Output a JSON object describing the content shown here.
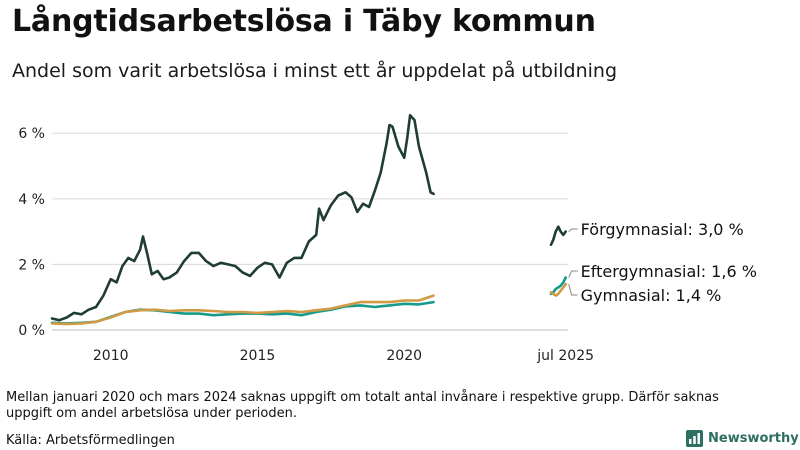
{
  "header": {
    "title": "Långtidsarbetslösa i Täby kommun",
    "subtitle": "Andel som varit arbetslösa i minst ett år uppdelat på utbildning"
  },
  "footer": {
    "footnote": "Mellan januari 2020 och mars 2024 saknas uppgift om totalt antal invånare i respektive grupp. Därför saknas uppgift om andel arbetslösa under perioden.",
    "source": "Källa: Arbetsförmedlingen",
    "brand": "Newsworthy",
    "brand_icon": "bar-chart-logo-icon"
  },
  "chart_data": {
    "type": "line",
    "title": "Långtidsarbetslösa i Täby kommun",
    "subtitle": "Andel som varit arbetslösa i minst ett år uppdelat på utbildning",
    "xlabel": "",
    "ylabel": "",
    "x_range": [
      2008.0,
      2025.58
    ],
    "ylim": [
      0,
      6.8
    ],
    "y_ticks": [
      0,
      2,
      4,
      6
    ],
    "y_tick_labels": [
      "0 %",
      "2 %",
      "4 %",
      "6 %"
    ],
    "x_ticks": [
      2010,
      2015,
      2020,
      2025.5
    ],
    "x_tick_labels": [
      "2010",
      "2015",
      "2020",
      "jul 2025"
    ],
    "grid": "horizontal",
    "legend": "direct labels at line ends (right)",
    "series": [
      {
        "name": "Förgymnasial",
        "end_label": "Förgymnasial: 3,0 %",
        "color": "#1f3d33",
        "segments": [
          [
            [
              2008.0,
              0.35
            ],
            [
              2008.25,
              0.3
            ],
            [
              2008.5,
              0.38
            ],
            [
              2008.75,
              0.52
            ],
            [
              2009.0,
              0.48
            ],
            [
              2009.25,
              0.62
            ],
            [
              2009.5,
              0.7
            ],
            [
              2009.75,
              1.05
            ],
            [
              2010.0,
              1.55
            ],
            [
              2010.2,
              1.45
            ],
            [
              2010.4,
              1.95
            ],
            [
              2010.6,
              2.2
            ],
            [
              2010.8,
              2.1
            ],
            [
              2011.0,
              2.45
            ],
            [
              2011.1,
              2.85
            ],
            [
              2011.25,
              2.3
            ],
            [
              2011.4,
              1.7
            ],
            [
              2011.6,
              1.8
            ],
            [
              2011.8,
              1.55
            ],
            [
              2012.0,
              1.6
            ],
            [
              2012.25,
              1.75
            ],
            [
              2012.5,
              2.1
            ],
            [
              2012.75,
              2.35
            ],
            [
              2013.0,
              2.35
            ],
            [
              2013.25,
              2.1
            ],
            [
              2013.5,
              1.95
            ],
            [
              2013.75,
              2.05
            ],
            [
              2014.0,
              2.0
            ],
            [
              2014.25,
              1.95
            ],
            [
              2014.5,
              1.75
            ],
            [
              2014.75,
              1.65
            ],
            [
              2015.0,
              1.9
            ],
            [
              2015.25,
              2.05
            ],
            [
              2015.5,
              2.0
            ],
            [
              2015.75,
              1.6
            ],
            [
              2016.0,
              2.05
            ],
            [
              2016.25,
              2.2
            ],
            [
              2016.5,
              2.2
            ],
            [
              2016.75,
              2.7
            ],
            [
              2017.0,
              2.9
            ],
            [
              2017.1,
              3.7
            ],
            [
              2017.25,
              3.35
            ],
            [
              2017.5,
              3.8
            ],
            [
              2017.75,
              4.1
            ],
            [
              2018.0,
              4.2
            ],
            [
              2018.2,
              4.05
            ],
            [
              2018.4,
              3.6
            ],
            [
              2018.6,
              3.85
            ],
            [
              2018.8,
              3.75
            ],
            [
              2019.0,
              4.25
            ],
            [
              2019.2,
              4.8
            ],
            [
              2019.4,
              5.7
            ],
            [
              2019.5,
              6.25
            ],
            [
              2019.6,
              6.2
            ],
            [
              2019.8,
              5.6
            ],
            [
              2020.0,
              5.25
            ],
            [
              2020.1,
              5.85
            ],
            [
              2020.2,
              6.55
            ],
            [
              2020.35,
              6.4
            ],
            [
              2020.5,
              5.6
            ],
            [
              2020.75,
              4.8
            ],
            [
              2020.9,
              4.2
            ],
            [
              2021.0,
              4.15
            ]
          ],
          [
            [
              2025.0,
              2.6
            ],
            [
              2025.08,
              2.75
            ],
            [
              2025.16,
              3.0
            ],
            [
              2025.25,
              3.15
            ],
            [
              2025.33,
              3.0
            ],
            [
              2025.42,
              2.9
            ],
            [
              2025.5,
              3.0
            ]
          ]
        ]
      },
      {
        "name": "Eftergymnasial",
        "end_label": "Eftergymnasial: 1,6 %",
        "color": "#169b8a",
        "segments": [
          [
            [
              2008.0,
              0.22
            ],
            [
              2008.5,
              0.2
            ],
            [
              2009.0,
              0.22
            ],
            [
              2009.5,
              0.25
            ],
            [
              2010.0,
              0.4
            ],
            [
              2010.5,
              0.55
            ],
            [
              2011.0,
              0.62
            ],
            [
              2011.5,
              0.6
            ],
            [
              2012.0,
              0.55
            ],
            [
              2012.5,
              0.5
            ],
            [
              2013.0,
              0.5
            ],
            [
              2013.5,
              0.45
            ],
            [
              2014.0,
              0.48
            ],
            [
              2014.5,
              0.5
            ],
            [
              2015.0,
              0.5
            ],
            [
              2015.5,
              0.48
            ],
            [
              2016.0,
              0.5
            ],
            [
              2016.5,
              0.45
            ],
            [
              2017.0,
              0.55
            ],
            [
              2017.5,
              0.62
            ],
            [
              2018.0,
              0.72
            ],
            [
              2018.5,
              0.75
            ],
            [
              2019.0,
              0.7
            ],
            [
              2019.5,
              0.75
            ],
            [
              2020.0,
              0.8
            ],
            [
              2020.5,
              0.78
            ],
            [
              2021.0,
              0.85
            ]
          ],
          [
            [
              2025.0,
              1.1
            ],
            [
              2025.08,
              1.15
            ],
            [
              2025.16,
              1.25
            ],
            [
              2025.25,
              1.3
            ],
            [
              2025.33,
              1.35
            ],
            [
              2025.42,
              1.45
            ],
            [
              2025.5,
              1.6
            ]
          ]
        ]
      },
      {
        "name": "Gymnasial",
        "end_label": "Gymnasial: 1,4 %",
        "color": "#d19a45",
        "segments": [
          [
            [
              2008.0,
              0.2
            ],
            [
              2008.5,
              0.18
            ],
            [
              2009.0,
              0.2
            ],
            [
              2009.5,
              0.25
            ],
            [
              2010.0,
              0.38
            ],
            [
              2010.5,
              0.55
            ],
            [
              2011.0,
              0.6
            ],
            [
              2011.5,
              0.62
            ],
            [
              2012.0,
              0.58
            ],
            [
              2012.5,
              0.6
            ],
            [
              2013.0,
              0.6
            ],
            [
              2013.5,
              0.58
            ],
            [
              2014.0,
              0.55
            ],
            [
              2014.5,
              0.55
            ],
            [
              2015.0,
              0.52
            ],
            [
              2015.5,
              0.55
            ],
            [
              2016.0,
              0.58
            ],
            [
              2016.5,
              0.55
            ],
            [
              2017.0,
              0.6
            ],
            [
              2017.5,
              0.65
            ],
            [
              2018.0,
              0.75
            ],
            [
              2018.5,
              0.85
            ],
            [
              2019.0,
              0.85
            ],
            [
              2019.5,
              0.85
            ],
            [
              2020.0,
              0.9
            ],
            [
              2020.5,
              0.9
            ],
            [
              2021.0,
              1.05
            ]
          ],
          [
            [
              2025.0,
              1.15
            ],
            [
              2025.08,
              1.1
            ],
            [
              2025.16,
              1.05
            ],
            [
              2025.25,
              1.1
            ],
            [
              2025.33,
              1.2
            ],
            [
              2025.42,
              1.3
            ],
            [
              2025.5,
              1.4
            ]
          ]
        ]
      }
    ]
  }
}
